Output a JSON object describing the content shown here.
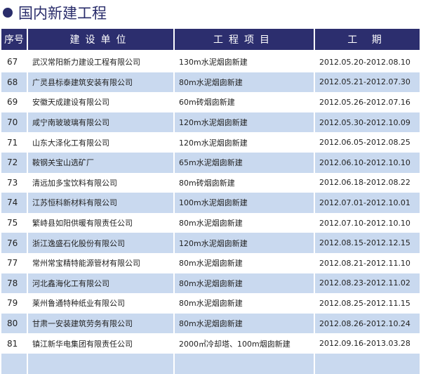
{
  "title": "国内新建工程",
  "headers": [
    "序号",
    "建设单位",
    "工程项目",
    "工  期"
  ],
  "rows": [
    [
      "67",
      "武汉常阳新力建设工程有限公司",
      "130m水泥烟囱新建",
      "2012.05.20-2012.08.10"
    ],
    [
      "68",
      "广灵县标泰建筑安装有限公司",
      "80m水泥烟囱新建",
      "2012.05.21-2012.07.30"
    ],
    [
      "69",
      "安徽天成建设有限公司",
      "60m砖烟囱新建",
      "2012.05.26-2012.07.16"
    ],
    [
      "70",
      "咸宁南玻玻璃有限公司",
      "120m水泥烟囱新建",
      "2012.05.30-2012.10.09"
    ],
    [
      "71",
      "山东大泽化工有限公司",
      "120m水泥烟囱新建",
      "2012.06.05-2012.08.25"
    ],
    [
      "72",
      "鞍钢关宝山选矿厂",
      "65m水泥烟囱新建",
      "2012.06.10-2012.10.10"
    ],
    [
      "73",
      "清远加多宝饮料有限公司",
      "80m砖烟囱新建",
      "2012.06.18-2012.08.22"
    ],
    [
      "74",
      "江苏恒科新材料有限公司",
      "100m水泥烟囱新建",
      "2012.07.01-2012.10.01"
    ],
    [
      "75",
      "繁峙县如阳供暖有限责任公司",
      "80m水泥烟囱新建",
      "2012.07.10-2012.10.10"
    ],
    [
      "76",
      "浙江逸盛石化股份有限公司",
      "120m水泥烟囱新建",
      "2012.08.15-2012.12.15"
    ],
    [
      "77",
      "常州常宝精特能源管材有限公司",
      "80m水泥烟囱新建",
      "2012.08.21-2012.11.10"
    ],
    [
      "78",
      "河北鑫海化工有限公司",
      "80m水泥烟囱新建",
      "2012.08.23-2012.11.02"
    ],
    [
      "79",
      "莱州鲁通特种纸业有限公司",
      "80m水泥烟囱新建",
      "2012.08.25-2012.11.15"
    ],
    [
      "80",
      "甘肃一安装建筑劳务有限公司",
      "80m水泥烟囱新建",
      "2012.08.26-2012.10.24"
    ],
    [
      "81",
      "镇江新华电集团有限责任公司",
      "2000㎡冷却塔、100m烟囱新建",
      "2012.09.16-2013.03.28"
    ]
  ],
  "colors": {
    "header": "#2c2e6e",
    "alt_row": "#c9d9ef"
  }
}
